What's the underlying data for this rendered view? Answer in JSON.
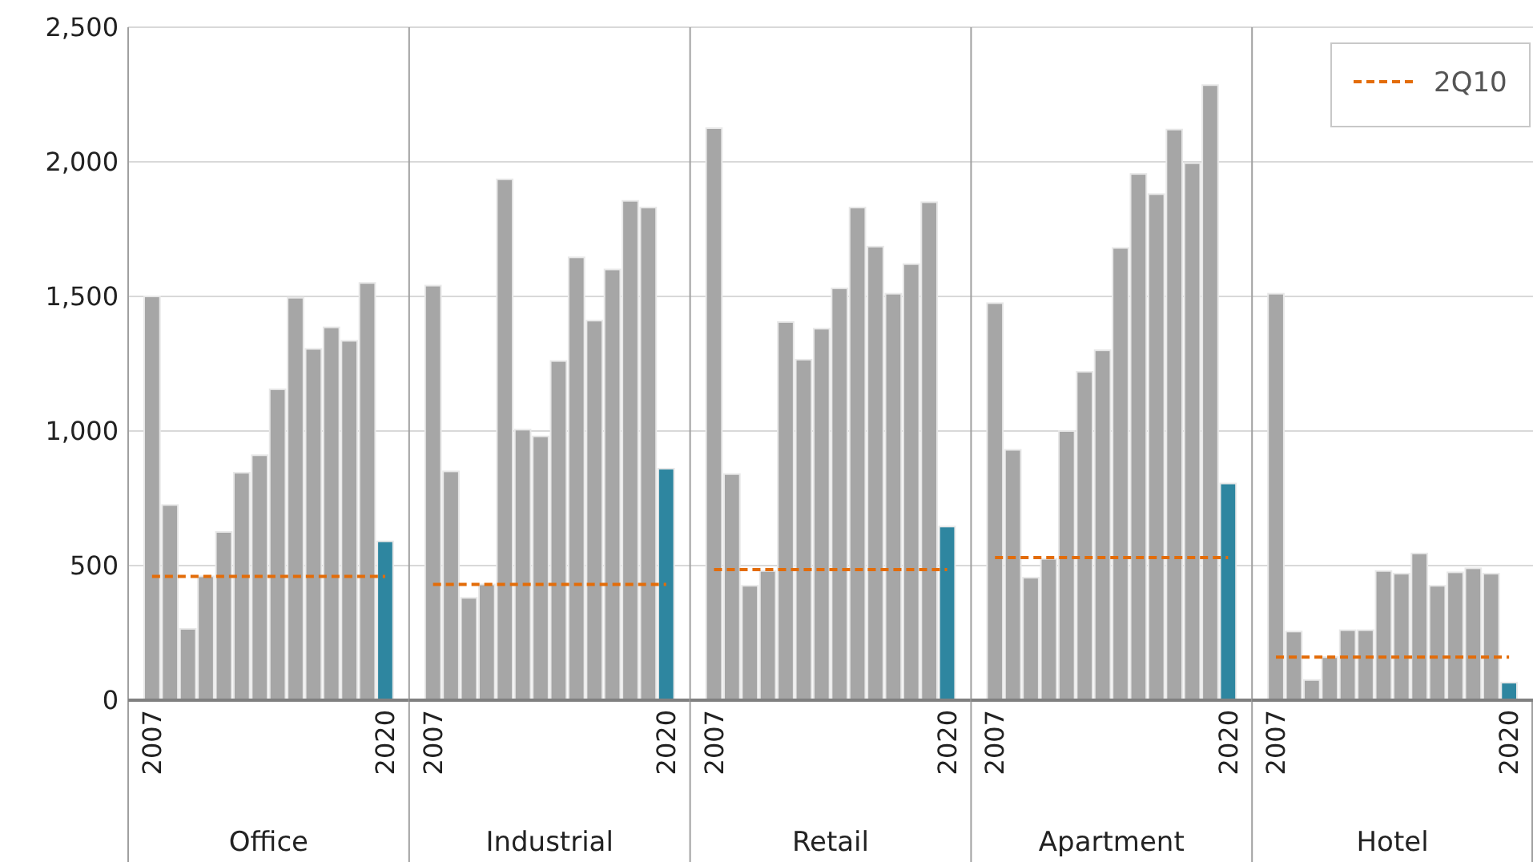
{
  "chart_data": [
    {
      "type": "bar",
      "xlabel": "Office",
      "categories": [
        "2007",
        null,
        null,
        null,
        null,
        null,
        null,
        null,
        null,
        null,
        null,
        null,
        null,
        "2020"
      ],
      "ylim": [
        0,
        2500
      ],
      "yticks": [
        0,
        500,
        {
          "value": 1000,
          "label": "1,000"
        },
        {
          "value": 1500,
          "label": "1,500"
        },
        {
          "value": 2000,
          "label": "2,000"
        },
        {
          "value": 2500,
          "label": "2,500"
        }
      ],
      "grid": "y",
      "series": [
        {
          "colors": [
            "#a6a6a6",
            "#a6a6a6",
            "#a6a6a6",
            "#a6a6a6",
            "#a6a6a6",
            "#a6a6a6",
            "#a6a6a6",
            "#a6a6a6",
            "#a6a6a6",
            "#a6a6a6",
            "#a6a6a6",
            "#a6a6a6",
            "#a6a6a6",
            "#2e86a0"
          ],
          "values": [
            1500,
            725,
            265,
            460,
            625,
            845,
            910,
            1155,
            1495,
            1305,
            1385,
            1335,
            1550,
            590
          ]
        },
        {
          "type": "line",
          "color": "#e36c09",
          "line_style": "dashed",
          "values": [
            460,
            460,
            460,
            460,
            460,
            460,
            460,
            460,
            460,
            460,
            460,
            460,
            460,
            460
          ]
        }
      ]
    },
    {
      "type": "bar",
      "xlabel": "Industrial",
      "categories": [
        "2007",
        null,
        null,
        null,
        null,
        null,
        null,
        null,
        null,
        null,
        null,
        null,
        null,
        "2020"
      ],
      "ylim": [
        0,
        2500
      ],
      "yticks": [
        0,
        500,
        1000,
        1500,
        2000,
        2500
      ],
      "tick_labels": "x",
      "grid": "y",
      "series": [
        {
          "colors": [
            "#a6a6a6",
            "#a6a6a6",
            "#a6a6a6",
            "#a6a6a6",
            "#a6a6a6",
            "#a6a6a6",
            "#a6a6a6",
            "#a6a6a6",
            "#a6a6a6",
            "#a6a6a6",
            "#a6a6a6",
            "#a6a6a6",
            "#a6a6a6",
            "#2e86a0"
          ],
          "values": [
            1540,
            850,
            380,
            430,
            1935,
            1005,
            980,
            1260,
            1645,
            1410,
            1600,
            1855,
            1830,
            860
          ]
        },
        {
          "type": "line",
          "color": "#e36c09",
          "line_style": "dashed",
          "values": [
            430,
            430,
            430,
            430,
            430,
            430,
            430,
            430,
            430,
            430,
            430,
            430,
            430,
            430
          ]
        }
      ]
    },
    {
      "type": "bar",
      "xlabel": "Retail",
      "categories": [
        "2007",
        null,
        null,
        null,
        null,
        null,
        null,
        null,
        null,
        null,
        null,
        null,
        null,
        "2020"
      ],
      "ylim": [
        0,
        2500
      ],
      "yticks": [
        0,
        500,
        1000,
        1500,
        2000,
        2500
      ],
      "tick_labels": "x",
      "grid": "y",
      "series": [
        {
          "colors": [
            "#a6a6a6",
            "#a6a6a6",
            "#a6a6a6",
            "#a6a6a6",
            "#a6a6a6",
            "#a6a6a6",
            "#a6a6a6",
            "#a6a6a6",
            "#a6a6a6",
            "#a6a6a6",
            "#a6a6a6",
            "#a6a6a6",
            "#a6a6a6",
            "#2e86a0"
          ],
          "values": [
            2125,
            840,
            425,
            480,
            1405,
            1265,
            1380,
            1530,
            1830,
            1685,
            1510,
            1620,
            1850,
            645
          ]
        },
        {
          "type": "line",
          "color": "#e36c09",
          "line_style": "dashed",
          "values": [
            485,
            485,
            485,
            485,
            485,
            485,
            485,
            485,
            485,
            485,
            485,
            485,
            485,
            485
          ]
        }
      ]
    },
    {
      "type": "bar",
      "xlabel": "Apartment",
      "categories": [
        "2007",
        null,
        null,
        null,
        null,
        null,
        null,
        null,
        null,
        null,
        null,
        null,
        null,
        "2020"
      ],
      "ylim": [
        0,
        2500
      ],
      "yticks": [
        0,
        500,
        1000,
        1500,
        2000,
        2500
      ],
      "tick_labels": "x",
      "grid": "y",
      "series": [
        {
          "colors": [
            "#a6a6a6",
            "#a6a6a6",
            "#a6a6a6",
            "#a6a6a6",
            "#a6a6a6",
            "#a6a6a6",
            "#a6a6a6",
            "#a6a6a6",
            "#a6a6a6",
            "#a6a6a6",
            "#a6a6a6",
            "#a6a6a6",
            "#a6a6a6",
            "#2e86a0"
          ],
          "values": [
            1475,
            930,
            455,
            525,
            1000,
            1220,
            1300,
            1680,
            1955,
            1880,
            2120,
            1995,
            2285,
            805
          ]
        },
        {
          "type": "line",
          "color": "#e36c09",
          "line_style": "dashed",
          "values": [
            530,
            530,
            530,
            530,
            530,
            530,
            530,
            530,
            530,
            530,
            530,
            530,
            530,
            530
          ]
        }
      ]
    },
    {
      "type": "bar",
      "xlabel": "Hotel",
      "categories": [
        "2007",
        null,
        null,
        null,
        null,
        null,
        null,
        null,
        null,
        null,
        null,
        null,
        null,
        "2020"
      ],
      "ylim": [
        0,
        2500
      ],
      "yticks": [
        0,
        500,
        1000,
        1500,
        2000,
        2500
      ],
      "tick_labels": "x",
      "grid": "y",
      "legend": "top right",
      "series": [
        {
          "colors": [
            "#a6a6a6",
            "#a6a6a6",
            "#a6a6a6",
            "#a6a6a6",
            "#a6a6a6",
            "#a6a6a6",
            "#a6a6a6",
            "#a6a6a6",
            "#a6a6a6",
            "#a6a6a6",
            "#a6a6a6",
            "#a6a6a6",
            "#a6a6a6",
            "#2e86a0"
          ],
          "values": [
            1510,
            255,
            75,
            160,
            260,
            260,
            480,
            470,
            545,
            425,
            475,
            490,
            470,
            65
          ]
        },
        {
          "type": "line",
          "name": "2Q10",
          "color": "#e36c09",
          "line_style": "dashed",
          "values": [
            160,
            160,
            160,
            160,
            160,
            160,
            160,
            160,
            160,
            160,
            160,
            160,
            160,
            160
          ]
        }
      ]
    }
  ]
}
